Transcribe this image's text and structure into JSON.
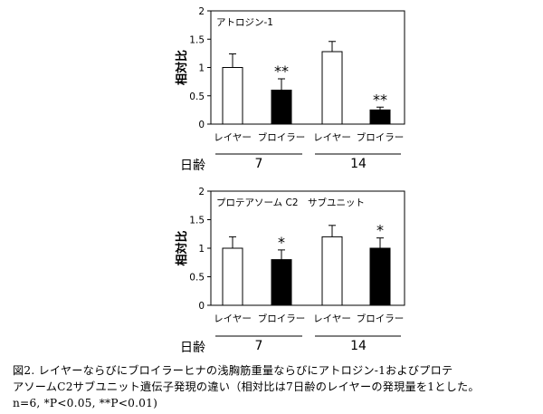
{
  "chart_data": [
    {
      "type": "bar",
      "title": "アトロジン-1",
      "ylabel": "相対比",
      "categories": [
        "レイヤー",
        "ブロイラー",
        "レイヤー",
        "ブロイラー"
      ],
      "values": [
        1.0,
        0.6,
        1.28,
        0.25
      ],
      "errors": [
        0.24,
        0.2,
        0.18,
        0.05
      ],
      "significance": [
        "",
        "**",
        "",
        "**"
      ],
      "fill": [
        "#ffffff",
        "#000000",
        "#ffffff",
        "#000000"
      ],
      "ylim": [
        0,
        2
      ],
      "yticks": [
        "0",
        "0.5",
        "1",
        "1.5",
        "2"
      ],
      "age_label": "日齢",
      "age_groups": [
        "7",
        "14"
      ]
    },
    {
      "type": "bar",
      "title": "プロテアソーム C2　サブユニット",
      "ylabel": "相対比",
      "categories": [
        "レイヤー",
        "ブロイラー",
        "レイヤー",
        "ブロイラー"
      ],
      "values": [
        1.0,
        0.8,
        1.2,
        1.0
      ],
      "errors": [
        0.2,
        0.17,
        0.2,
        0.18
      ],
      "significance": [
        "",
        "*",
        "",
        "*"
      ],
      "fill": [
        "#ffffff",
        "#000000",
        "#ffffff",
        "#000000"
      ],
      "ylim": [
        0,
        2
      ],
      "yticks": [
        "0",
        "0.5",
        "1",
        "1.5",
        "2"
      ],
      "age_label": "日齢",
      "age_groups": [
        "7",
        "14"
      ]
    }
  ],
  "caption": {
    "line1": "図2. レイヤーならびにブロイラーヒナの浅胸筋重量ならびにアトロジン-1およびプロテ",
    "line2": "アソームC2サブユニット遺伝子発現の違い（相対比は7日齢のレイヤーの発現量を1とした。",
    "line3": "n=6, *P<0.05, **P<0.01)"
  }
}
